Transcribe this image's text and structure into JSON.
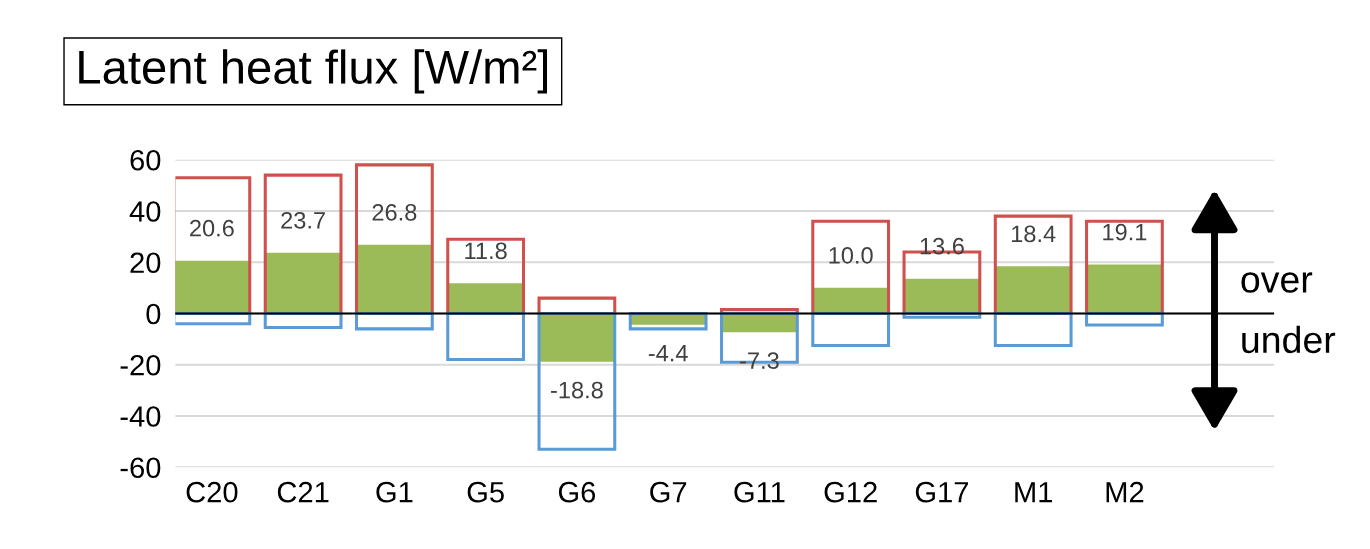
{
  "chart_data": {
    "type": "bar",
    "title": "Latent heat flux [W/m²]",
    "categories": [
      "C20",
      "C21",
      "G1",
      "G5",
      "G6",
      "G7",
      "G11",
      "G12",
      "G17",
      "M1",
      "M2"
    ],
    "series": [
      {
        "color": "#d0504d",
        "values": [
          53,
          54,
          58,
          29,
          6,
          0,
          1.5,
          36,
          24,
          38,
          36
        ]
      },
      {
        "color": "#5b9bd5",
        "values": [
          -4,
          -5.5,
          -6,
          -18,
          -53,
          -6,
          -19,
          -12.5,
          -1.5,
          -12.5,
          -4.5
        ]
      },
      {
        "color": "#9bbb59",
        "values": [
          20.6,
          23.7,
          26.8,
          11.8,
          -18.8,
          -4.4,
          -7.3,
          10.0,
          13.6,
          18.4,
          19.1
        ],
        "value_labels": [
          "20.6",
          "23.7",
          "26.8",
          "11.8",
          "-18.8",
          "-4.4",
          "-7.3",
          "10.0",
          "13.6",
          "18.4",
          "19.1"
        ]
      }
    ],
    "ylim": [
      -60,
      60
    ],
    "yticks": [
      -60,
      -40,
      -20,
      0,
      20,
      40,
      60
    ],
    "grid": "y",
    "legend": false,
    "annotations": [
      "over",
      "under"
    ]
  }
}
